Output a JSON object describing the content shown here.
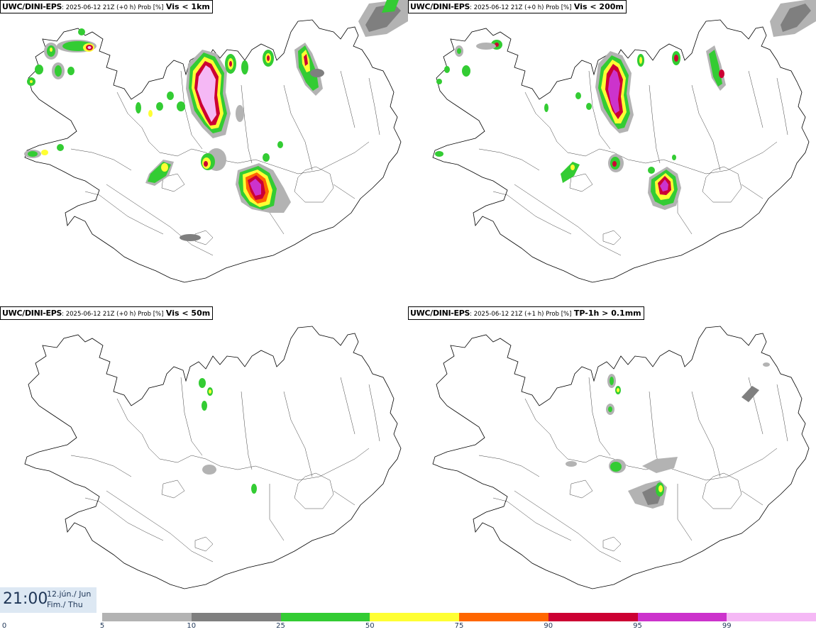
{
  "panels": [
    {
      "model": "UWC/DINI-EPS",
      "run": ": 2025-06-12 21Z (+0 h) Prob [%]",
      "var": "Vis < 1km"
    },
    {
      "model": "UWC/DINI-EPS",
      "run": ": 2025-06-12 21Z (+0 h) Prob [%]",
      "var": "Vis < 200m"
    },
    {
      "model": "UWC/DINI-EPS",
      "run": ": 2025-06-12 21Z (+0 h) Prob [%]",
      "var": "Vis < 50m"
    },
    {
      "model": "UWC/DINI-EPS",
      "run": ": 2025-06-12 21Z (+1 h) Prob [%]",
      "var": "TP-1h > 0.1mm"
    }
  ],
  "time": "21:00",
  "date_line1": "12.jún./ Jun",
  "date_line2": "Fim./ Thu",
  "legend": {
    "ticks": [
      "0",
      "5",
      "10",
      "25",
      "50",
      "75",
      "90",
      "95",
      "99"
    ],
    "colors": [
      "#b3b3b3",
      "#7f7f7f",
      "#33cc33",
      "#ffff33",
      "#ff6600",
      "#cc0033",
      "#cc33cc",
      "#f5b8f5"
    ]
  }
}
